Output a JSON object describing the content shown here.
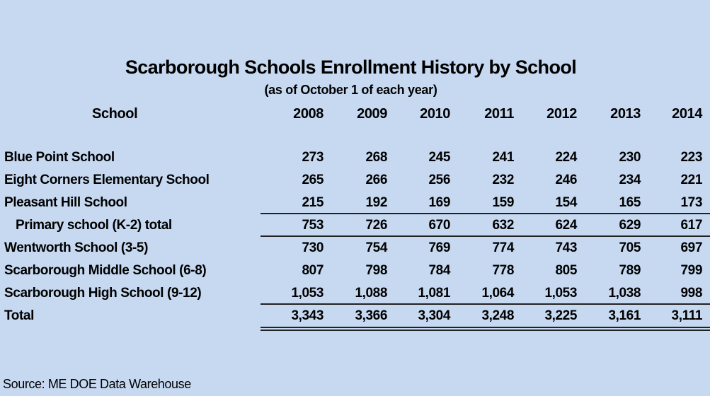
{
  "title": "Scarborough Schools Enrollment History by School",
  "subtitle": "(as of October 1 of each year)",
  "table": {
    "header_label": "School",
    "years": [
      "2008",
      "2009",
      "2010",
      "2011",
      "2012",
      "2013",
      "2014"
    ],
    "rows": [
      {
        "school": "Blue Point School",
        "values": [
          "273",
          "268",
          "245",
          "241",
          "224",
          "230",
          "223"
        ]
      },
      {
        "school": "Eight Corners Elementary School",
        "values": [
          "265",
          "266",
          "256",
          "232",
          "246",
          "234",
          "221"
        ]
      },
      {
        "school": "Pleasant Hill School",
        "values": [
          "215",
          "192",
          "169",
          "159",
          "154",
          "165",
          "173"
        ]
      },
      {
        "school": "Primary school  (K-2) total",
        "values": [
          "753",
          "726",
          "670",
          "632",
          "624",
          "629",
          "617"
        ]
      },
      {
        "school": "Wentworth School (3-5)",
        "values": [
          "730",
          "754",
          "769",
          "774",
          "743",
          "705",
          "697"
        ]
      },
      {
        "school": "Scarborough Middle School (6-8)",
        "values": [
          "807",
          "798",
          "784",
          "778",
          "805",
          "789",
          "799"
        ]
      },
      {
        "school": "Scarborough High School (9-12)",
        "values": [
          "1,053",
          "1,088",
          "1,081",
          "1,064",
          "1,053",
          "1,038",
          "998"
        ]
      },
      {
        "school": "Total",
        "values": [
          "3,343",
          "3,366",
          "3,304",
          "3,248",
          "3,225",
          "3,161",
          "3,111"
        ]
      }
    ]
  },
  "source": "Source: ME DOE Data Warehouse"
}
